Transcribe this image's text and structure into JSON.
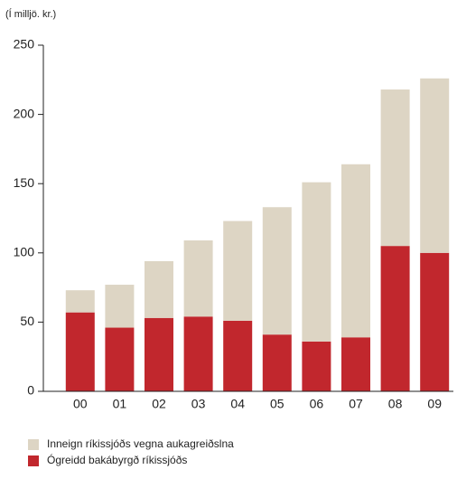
{
  "chart_data": {
    "type": "stacked-bar",
    "ylabel": "(Í milljö. kr.)",
    "categories": [
      "00",
      "01",
      "02",
      "03",
      "04",
      "05",
      "06",
      "07",
      "08",
      "09"
    ],
    "series": [
      {
        "name": "Inneign ríkissjóðs vegna aukagreiðslna",
        "color": "#ddd5c4",
        "values": [
          16,
          31,
          41,
          55,
          72,
          92,
          115,
          125,
          113,
          126
        ]
      },
      {
        "name": "Ógreidd bakábyrgð ríkissjóðs",
        "color": "#c1272d",
        "values": [
          57,
          46,
          53,
          54,
          51,
          41,
          36,
          39,
          105,
          100
        ]
      }
    ],
    "stack_order": [
      1,
      0
    ],
    "ylim": [
      0,
      250
    ],
    "yticks": [
      0,
      50,
      100,
      150,
      200,
      250
    ],
    "legend": "bottom-left"
  }
}
